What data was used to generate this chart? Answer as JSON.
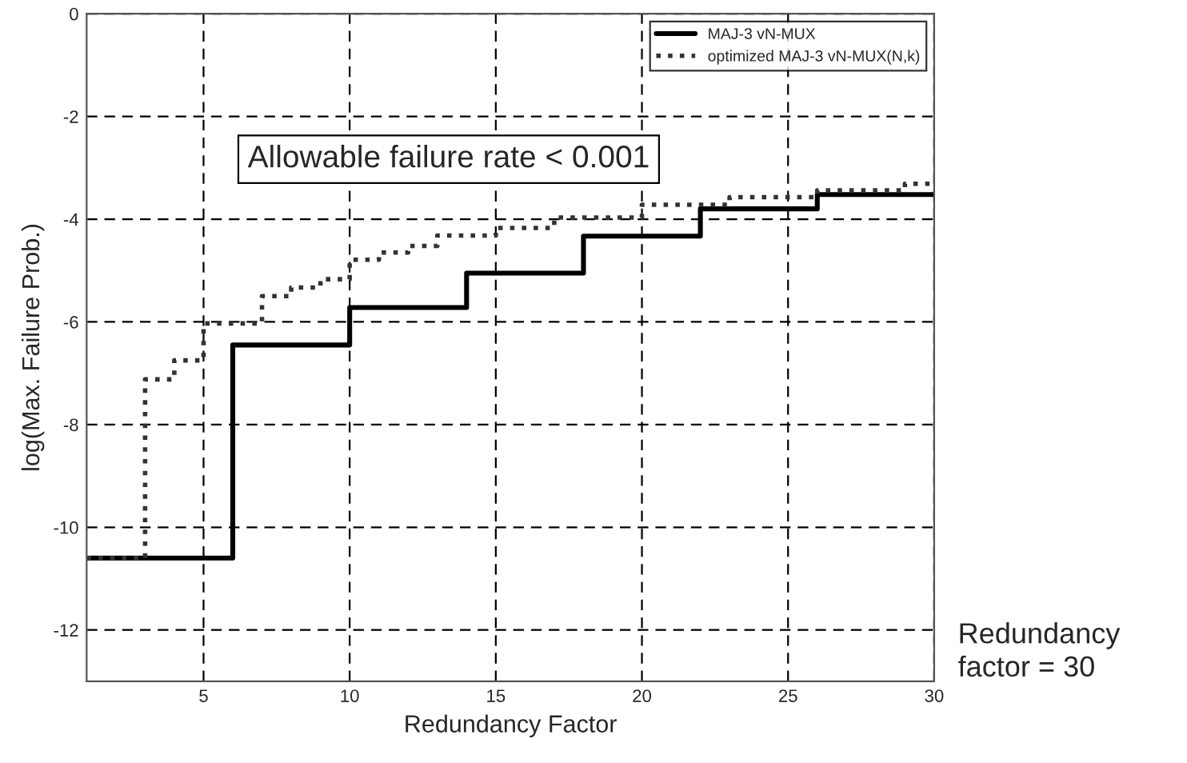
{
  "chart_data": {
    "type": "step",
    "xlabel": "Redundancy Factor",
    "ylabel": "log(Max. Failure Prob.)",
    "annotations": [
      "Allowable failure rate < 0.001",
      "Redundancy\nfactor = 30"
    ],
    "xlim": [
      1,
      30
    ],
    "ylim": [
      -13,
      0
    ],
    "xticks": [
      5,
      10,
      15,
      20,
      25,
      30
    ],
    "yticks": [
      {
        "value": 0,
        "label": "0"
      },
      {
        "value": -2,
        "label": "-2"
      },
      {
        "value": -4,
        "label": "-4"
      },
      {
        "value": -6,
        "label": "-6"
      },
      {
        "value": -8,
        "label": "-8"
      },
      {
        "value": -10,
        "label": "-10"
      },
      {
        "value": -12,
        "label": "-12"
      }
    ],
    "grid": true,
    "legend": "top right",
    "series": [
      {
        "name": "MAJ-3 vN-MUX",
        "color": "#000000",
        "line_style": "solid",
        "x": [
          1,
          6,
          10,
          14,
          18,
          22,
          26,
          30
        ],
        "values": [
          -10.6,
          -6.45,
          -5.72,
          -5.05,
          -4.33,
          -3.8,
          -3.52,
          -3.52
        ]
      },
      {
        "name": "optimized MAJ-3 vN-MUX(N,k)",
        "color": "#333333",
        "line_style": "dotted",
        "x": [
          1,
          3,
          4,
          5,
          7,
          8,
          9,
          10,
          11,
          12,
          13,
          15,
          17,
          20,
          23,
          26,
          29,
          30
        ],
        "values": [
          -10.6,
          -7.12,
          -6.75,
          -6.03,
          -5.5,
          -5.33,
          -5.17,
          -4.79,
          -4.65,
          -4.52,
          -4.32,
          -4.17,
          -3.97,
          -3.72,
          -3.57,
          -3.44,
          -3.31,
          -3.31
        ]
      }
    ]
  }
}
